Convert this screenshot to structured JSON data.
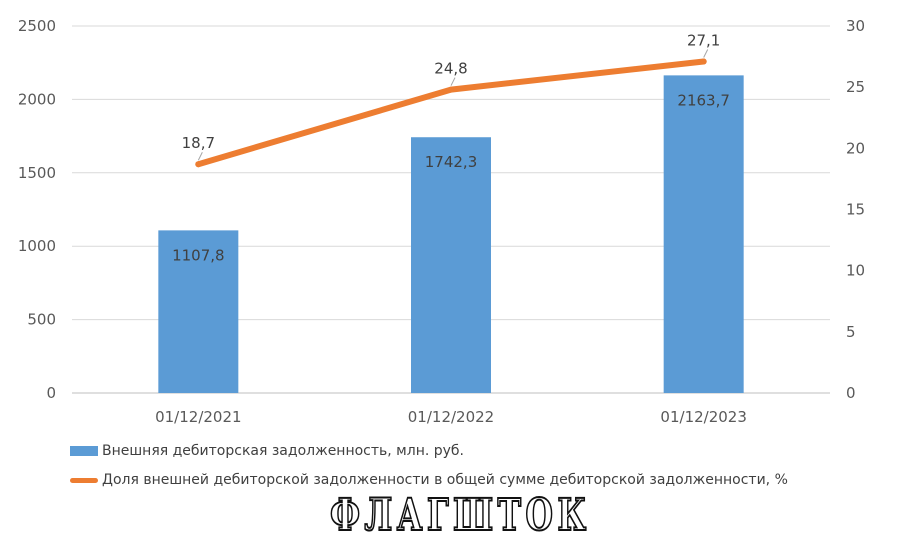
{
  "chart_data": {
    "type": "bar+line",
    "categories": [
      "01/12/2021",
      "01/12/2022",
      "01/12/2023"
    ],
    "series": [
      {
        "name": "Внешняя дебиторская задолженность, млн. руб.",
        "type": "bar",
        "axis": "left",
        "values": [
          1107.8,
          1742.3,
          2163.7
        ],
        "labels": [
          "1107,8",
          "1742,3",
          "2163,7"
        ],
        "color": "#5b9bd5"
      },
      {
        "name": "Доля внешней дебиторской задолженности в общей сумме дебиторской задолженности, %",
        "type": "line",
        "axis": "right",
        "values": [
          18.7,
          24.8,
          27.1
        ],
        "labels": [
          "18,7",
          "24,8",
          "27,1"
        ],
        "color": "#ed7d31"
      }
    ],
    "y_left": {
      "ylim": [
        0,
        2500
      ],
      "ticks": [
        "0",
        "500",
        "1000",
        "1500",
        "2000",
        "2500"
      ]
    },
    "y_right": {
      "ylim": [
        0,
        30
      ],
      "ticks": [
        "0",
        "5",
        "10",
        "15",
        "20",
        "25",
        "30"
      ]
    },
    "grid": true,
    "legend_position": "bottom-left"
  },
  "watermark": "ФЛАГШТОК"
}
